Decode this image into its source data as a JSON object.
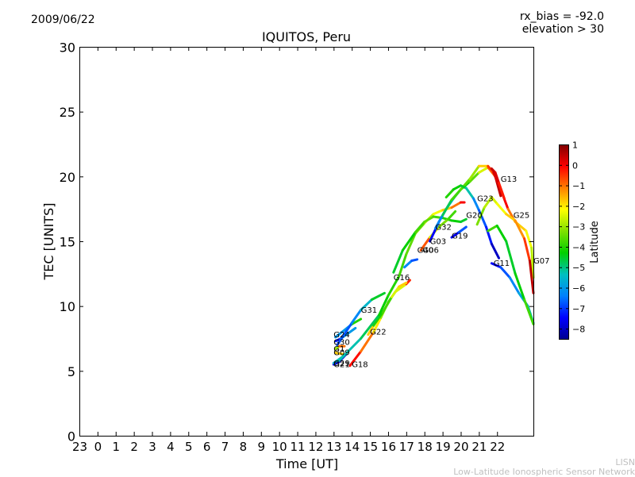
{
  "header": {
    "date": "2009/06/22",
    "rx_bias": "rx_bias = -92.0",
    "elevation": "elevation > 30"
  },
  "footer": {
    "credit_line1": "LISN",
    "credit_line2": "Low-Latitude Ionospheric Sensor Network"
  },
  "chart_data": {
    "type": "line",
    "title": "IQUITOS, Peru",
    "xlabel": "Time [UT]",
    "ylabel": "TEC [UNITS]",
    "ylim": [
      0,
      30
    ],
    "yticks": [
      0,
      5,
      10,
      15,
      20,
      25,
      30
    ],
    "xlim": [
      -1,
      24
    ],
    "xticks": [
      -1,
      0,
      1,
      2,
      3,
      4,
      5,
      6,
      7,
      8,
      9,
      10,
      11,
      12,
      13,
      14,
      15,
      16,
      17,
      18,
      19,
      20,
      21,
      22
    ],
    "xtick_labels": [
      "23",
      "0",
      "1",
      "2",
      "3",
      "4",
      "5",
      "6",
      "7",
      "8",
      "9",
      "10",
      "11",
      "12",
      "13",
      "14",
      "15",
      "16",
      "17",
      "18",
      "19",
      "20",
      "21",
      "22"
    ],
    "grid": false,
    "colorbar": {
      "label": "Latitude",
      "min": -8.5,
      "max": 1,
      "ticks": [
        1,
        0,
        -1,
        -2,
        -3,
        -4,
        -5,
        -6,
        -7,
        -8
      ],
      "colormap": [
        "#00008f",
        "#0000ff",
        "#0080ff",
        "#00c0c0",
        "#00d000",
        "#7fe000",
        "#ffff00",
        "#ff8000",
        "#ff0000",
        "#800000"
      ]
    },
    "series": [
      {
        "name": "G24",
        "points": [
          [
            13.1,
            7.6
          ],
          [
            14.0,
            8.6
          ],
          [
            14.5,
            9.0
          ]
        ],
        "lat": [
          -7.5,
          -4.5,
          -3.5
        ]
      },
      {
        "name": "G30",
        "points": [
          [
            13.1,
            7.3
          ],
          [
            13.4,
            7.5
          ],
          [
            14.2,
            8.3
          ]
        ],
        "lat": [
          -8.0,
          -6.5,
          -5.5
        ]
      },
      {
        "name": "G31",
        "points": [
          [
            13.2,
            7.0
          ],
          [
            14.0,
            8.7
          ],
          [
            14.5,
            9.7
          ],
          [
            15.1,
            10.5
          ],
          [
            15.8,
            11.0
          ]
        ],
        "lat": [
          -7.0,
          -6.5,
          -6.0,
          -5.0,
          -4.0
        ]
      },
      {
        "name": "G1",
        "points": [
          [
            13.1,
            6.7
          ],
          [
            13.3,
            6.9
          ],
          [
            13.6,
            6.9
          ]
        ],
        "lat": [
          -3.5,
          -2.5,
          0.5
        ]
      },
      {
        "name": "G09",
        "points": [
          [
            13.1,
            6.4
          ],
          [
            13.5,
            6.3
          ]
        ],
        "lat": [
          -2.0,
          -1.5
        ]
      },
      {
        "name": "G21",
        "points": [
          [
            13.0,
            5.5
          ],
          [
            13.3,
            5.7
          ],
          [
            13.7,
            6.3
          ]
        ],
        "lat": [
          -8.0,
          -7.5,
          -8.0
        ]
      },
      {
        "name": "G29",
        "points": [
          [
            13.0,
            5.6
          ],
          [
            13.2,
            5.8
          ],
          [
            13.6,
            6.2
          ]
        ],
        "lat": [
          -6.0,
          -5.5,
          -5.0
        ]
      },
      {
        "name": "G18",
        "points": [
          [
            13.9,
            5.4
          ],
          [
            14.5,
            6.5
          ],
          [
            15.2,
            8.0
          ],
          [
            15.6,
            9.1
          ],
          [
            16.0,
            10.3
          ],
          [
            16.4,
            11.1
          ],
          [
            17.0,
            11.7
          ],
          [
            17.2,
            12.0
          ]
        ],
        "lat": [
          0.2,
          -0.5,
          -1.5,
          -2.5,
          -3.5,
          -4.0,
          -1.0,
          0.3
        ]
      },
      {
        "name": "G22",
        "points": [
          [
            14.9,
            7.8
          ],
          [
            15.2,
            8.5
          ],
          [
            15.7,
            9.5
          ],
          [
            16.2,
            10.7
          ],
          [
            16.6,
            11.5
          ],
          [
            17.0,
            11.8
          ]
        ],
        "lat": [
          0.0,
          -3.5,
          -4.5,
          -3.0,
          -2.0,
          -1.5
        ]
      },
      {
        "name": "G16",
        "points": [
          [
            13.3,
            5.8
          ],
          [
            14.5,
            7.5
          ],
          [
            15.5,
            9.3
          ],
          [
            16.0,
            10.8
          ],
          [
            16.6,
            12.3
          ],
          [
            17.0,
            14.0
          ],
          [
            17.5,
            15.6
          ],
          [
            18.0,
            16.4
          ],
          [
            18.5,
            17.1
          ],
          [
            19.0,
            17.4
          ],
          [
            19.5,
            17.6
          ],
          [
            20.0,
            18.0
          ],
          [
            20.2,
            18.0
          ]
        ],
        "lat": [
          -5.5,
          -5.0,
          -4.5,
          -4.0,
          -4.0,
          -3.5,
          -3.5,
          -3.0,
          -2.5,
          -2.0,
          -1.5,
          -0.5,
          0.5
        ]
      },
      {
        "name": "G20",
        "points": [
          [
            16.3,
            12.6
          ],
          [
            16.8,
            14.3
          ],
          [
            17.5,
            15.7
          ],
          [
            18.0,
            16.5
          ],
          [
            18.5,
            16.9
          ],
          [
            19.0,
            16.8
          ],
          [
            19.5,
            16.6
          ],
          [
            20.0,
            16.5
          ],
          [
            20.3,
            16.7
          ]
        ],
        "lat": [
          -4.5,
          -4.5,
          -4.0,
          -3.5,
          -3.5,
          -4.0,
          -4.0,
          -4.5,
          -4.5
        ]
      },
      {
        "name": "G40",
        "points": [
          [
            16.9,
            13.0
          ],
          [
            17.3,
            13.5
          ],
          [
            17.6,
            13.6
          ]
        ],
        "lat": [
          -6.0,
          -6.5,
          -7.0
        ]
      },
      {
        "name": "G06",
        "points": [
          [
            17.8,
            14.3
          ],
          [
            18.3,
            15.3
          ],
          [
            18.8,
            16.1
          ],
          [
            19.3,
            16.7
          ],
          [
            19.7,
            17.3
          ]
        ],
        "lat": [
          0.5,
          -2.0,
          -3.0,
          -3.5,
          -4.0
        ]
      },
      {
        "name": "G03",
        "points": [
          [
            18.3,
            15.0
          ],
          [
            18.8,
            16.5
          ],
          [
            19.2,
            17.5
          ],
          [
            19.6,
            18.3
          ],
          [
            20.0,
            19.0
          ],
          [
            20.5,
            19.6
          ],
          [
            21.0,
            20.3
          ],
          [
            21.5,
            20.7
          ],
          [
            21.9,
            20.0
          ],
          [
            22.2,
            18.5
          ]
        ],
        "lat": [
          -8.0,
          -7.0,
          -6.0,
          -5.0,
          -4.5,
          -4.0,
          -3.0,
          -2.0,
          0.0,
          1.0
        ]
      },
      {
        "name": "G32",
        "points": [
          [
            18.6,
            16.0
          ],
          [
            19.0,
            17.0
          ],
          [
            19.5,
            18.2
          ],
          [
            20.0,
            19.0
          ],
          [
            20.5,
            19.8
          ],
          [
            21.0,
            20.8
          ],
          [
            21.5,
            20.8
          ],
          [
            21.8,
            20.3
          ],
          [
            22.2,
            19.0
          ],
          [
            22.6,
            17.5
          ],
          [
            23.0,
            16.5
          ],
          [
            23.6,
            15.8
          ],
          [
            23.9,
            14.5
          ],
          [
            24.0,
            12.2
          ]
        ],
        "lat": [
          -7.0,
          -5.5,
          -4.0,
          -3.5,
          -3.5,
          -2.5,
          -1.0,
          0.0,
          0.5,
          -0.5,
          -1.5,
          -2.0,
          -2.5,
          -3.0
        ]
      },
      {
        "name": "G19",
        "points": [
          [
            19.5,
            15.3
          ],
          [
            19.9,
            15.7
          ],
          [
            20.3,
            16.1
          ]
        ],
        "lat": [
          -8.0,
          -7.0,
          -6.5
        ]
      },
      {
        "name": "G23",
        "points": [
          [
            19.2,
            18.4
          ],
          [
            19.6,
            19.0
          ],
          [
            20.0,
            19.3
          ],
          [
            20.3,
            19.1
          ],
          [
            20.7,
            18.3
          ],
          [
            21.0,
            17.4
          ],
          [
            21.4,
            16.1
          ],
          [
            21.7,
            14.8
          ],
          [
            22.1,
            13.7
          ]
        ],
        "lat": [
          -4.0,
          -4.0,
          -4.5,
          -4.5,
          -6.0,
          -6.5,
          -7.0,
          -7.5,
          -8.5
        ]
      },
      {
        "name": "G13",
        "points": [
          [
            21.7,
            20.6
          ],
          [
            21.9,
            20.3
          ],
          [
            22.1,
            19.5
          ],
          [
            22.4,
            18.3
          ]
        ],
        "lat": [
          0.3,
          0.5,
          0.0,
          -0.5
        ]
      },
      {
        "name": "G25",
        "points": [
          [
            20.9,
            16.3
          ],
          [
            21.3,
            17.6
          ],
          [
            21.7,
            18.4
          ],
          [
            22.0,
            17.9
          ],
          [
            22.5,
            17.1
          ],
          [
            23.0,
            16.6
          ],
          [
            23.5,
            15.2
          ],
          [
            23.8,
            13.5
          ],
          [
            24.0,
            11.0
          ]
        ],
        "lat": [
          -3.5,
          -3.0,
          -2.5,
          -2.5,
          -2.0,
          -1.5,
          -1.0,
          0.0,
          1.0
        ]
      },
      {
        "name": "G11",
        "points": [
          [
            21.7,
            13.3
          ],
          [
            22.2,
            13.0
          ],
          [
            22.7,
            12.2
          ],
          [
            23.2,
            11.0
          ],
          [
            23.7,
            10.0
          ],
          [
            24.0,
            8.7
          ]
        ],
        "lat": [
          -8.0,
          -7.0,
          -6.5,
          -6.0,
          -5.5,
          -5.0
        ]
      },
      {
        "name": "G07",
        "points": [
          [
            21.5,
            15.8
          ],
          [
            22.0,
            16.2
          ],
          [
            22.5,
            15.0
          ],
          [
            23.0,
            12.5
          ],
          [
            23.5,
            10.5
          ],
          [
            24.0,
            8.6
          ]
        ],
        "lat": [
          -3.5,
          -4.0,
          -4.5,
          -4.5,
          -4.0,
          -3.5
        ]
      }
    ],
    "annotations": [
      {
        "text": "G24",
        "x": 13.0,
        "y": 7.6
      },
      {
        "text": "G30",
        "x": 13.0,
        "y": 7.0
      },
      {
        "text": "G31",
        "x": 14.5,
        "y": 9.5
      },
      {
        "text": "G1",
        "x": 13.0,
        "y": 6.5
      },
      {
        "text": "G09",
        "x": 13.0,
        "y": 6.2
      },
      {
        "text": "G21",
        "x": 13.0,
        "y": 5.3
      },
      {
        "text": "G29",
        "x": 13.0,
        "y": 5.4
      },
      {
        "text": "G18",
        "x": 14.0,
        "y": 5.3
      },
      {
        "text": "G22",
        "x": 15.0,
        "y": 7.8
      },
      {
        "text": "G16",
        "x": 16.3,
        "y": 12.0
      },
      {
        "text": "G40",
        "x": 17.6,
        "y": 14.1
      },
      {
        "text": "G06",
        "x": 17.9,
        "y": 14.1
      },
      {
        "text": "G03",
        "x": 18.3,
        "y": 14.8
      },
      {
        "text": "G32",
        "x": 18.6,
        "y": 15.9
      },
      {
        "text": "G19",
        "x": 19.5,
        "y": 15.2
      },
      {
        "text": "G20",
        "x": 20.3,
        "y": 16.8
      },
      {
        "text": "G23",
        "x": 20.9,
        "y": 18.1
      },
      {
        "text": "G13",
        "x": 22.2,
        "y": 19.6
      },
      {
        "text": "G25",
        "x": 22.9,
        "y": 16.8
      },
      {
        "text": "G07",
        "x": 24.0,
        "y": 13.3
      },
      {
        "text": "G11",
        "x": 21.8,
        "y": 13.1
      }
    ]
  }
}
